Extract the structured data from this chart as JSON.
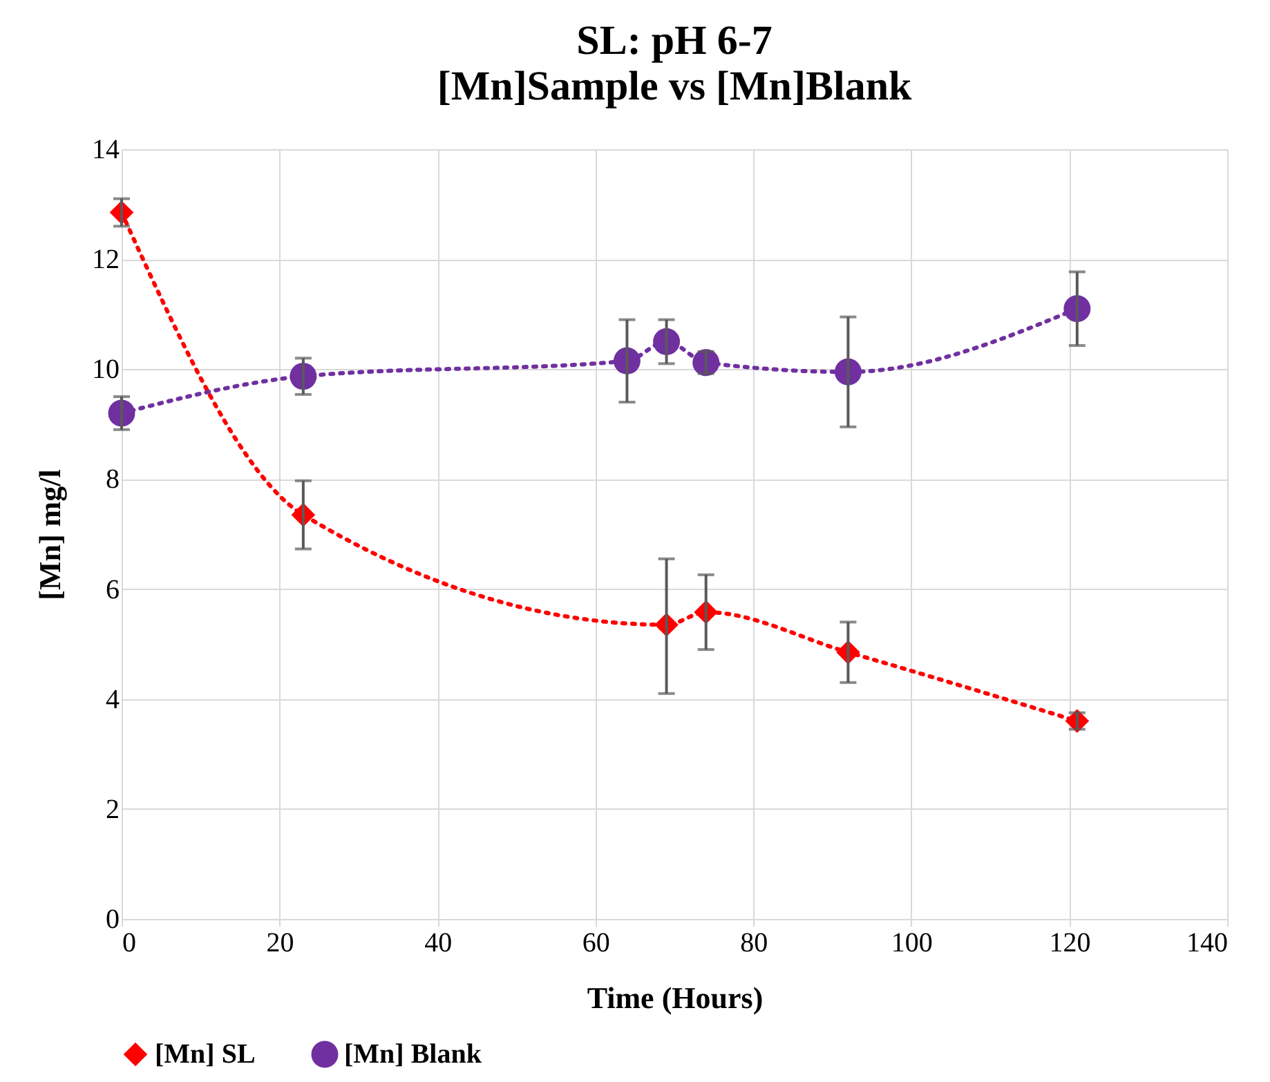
{
  "chart_data": {
    "type": "line",
    "title": "SL: pH 6-7",
    "subtitle": "[Mn]Sample vs [Mn]Blank",
    "xlabel": "Time (Hours)",
    "ylabel": "[Mn] mg/l",
    "xlim": [
      0,
      140
    ],
    "xticks": [
      0,
      20,
      40,
      60,
      80,
      100,
      120,
      140
    ],
    "ylim": [
      0,
      14
    ],
    "yticks": [
      0,
      2,
      4,
      6,
      8,
      10,
      12,
      14
    ],
    "grid": true,
    "legend": "bottom",
    "line_style": "dotted",
    "series": [
      {
        "name": "[Mn] SL",
        "color": "#ff0000",
        "marker": "diamond",
        "x": [
          0,
          23,
          69,
          74,
          92,
          121
        ],
        "values": [
          12.85,
          7.35,
          5.35,
          5.58,
          4.85,
          3.6
        ],
        "errors": [
          0.25,
          0.62,
          [
            4.1,
            6.55
          ],
          0.68,
          0.55,
          0.15
        ]
      },
      {
        "name": "[Mn] Blank",
        "color": "#7030a0",
        "marker": "circle",
        "x": [
          0,
          23,
          64,
          69,
          74,
          92,
          121
        ],
        "values": [
          9.2,
          9.87,
          10.15,
          10.5,
          10.12,
          9.95,
          11.1
        ],
        "errors": [
          0.3,
          0.33,
          0.75,
          0.4,
          0.2,
          1.0,
          0.67
        ]
      }
    ]
  }
}
